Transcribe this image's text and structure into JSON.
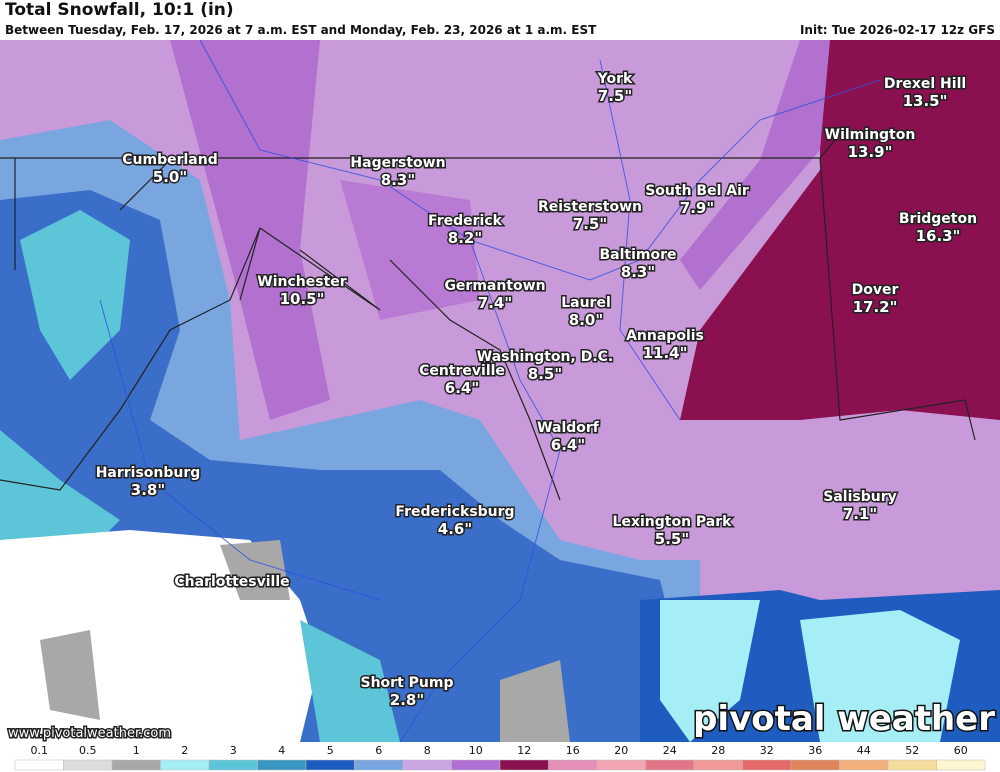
{
  "header": {
    "title": "Total Snowfall, 10:1 (in)",
    "subtitle": "Between Tuesday, Feb. 17, 2026 at 7 a.m. EST and Monday, Feb. 23, 2026 at 1 a.m. EST",
    "init": "Init: Tue 2026-02-17 12z GFS"
  },
  "places": [
    {
      "name": "York",
      "amount": "7.5\""
    },
    {
      "name": "Drexel Hill",
      "amount": "13.5\""
    },
    {
      "name": "Wilmington",
      "amount": "13.9\""
    },
    {
      "name": "Cumberland",
      "amount": "5.0\""
    },
    {
      "name": "Hagerstown",
      "amount": "8.3\""
    },
    {
      "name": "South Bel Air",
      "amount": "7.9\""
    },
    {
      "name": "Reisterstown",
      "amount": "7.5\""
    },
    {
      "name": "Bridgeton",
      "amount": "16.3\""
    },
    {
      "name": "Frederick",
      "amount": "8.2\""
    },
    {
      "name": "Baltimore",
      "amount": "8.3\""
    },
    {
      "name": "Winchester",
      "amount": "10.5\""
    },
    {
      "name": "Germantown",
      "amount": "7.4\""
    },
    {
      "name": "Dover",
      "amount": "17.2\""
    },
    {
      "name": "Laurel",
      "amount": "8.0\""
    },
    {
      "name": "Annapolis",
      "amount": "11.4\""
    },
    {
      "name": "Washington, D.C.",
      "amount": "8.5\""
    },
    {
      "name": "Centreville",
      "amount": "6.4\""
    },
    {
      "name": "Waldorf",
      "amount": "6.4\""
    },
    {
      "name": "Harrisonburg",
      "amount": "3.8\""
    },
    {
      "name": "Salisbury",
      "amount": "7.1\""
    },
    {
      "name": "Fredericksburg",
      "amount": "4.6\""
    },
    {
      "name": "Lexington Park",
      "amount": "5.5\""
    },
    {
      "name": "Charlottesville"
    },
    {
      "name": "Short Pump",
      "amount": "2.8\""
    }
  ],
  "footer": {
    "url": "www.pivotalweather.com",
    "brand": "pivotal weather"
  },
  "colorbar": {
    "labels": [
      "0.1",
      "0.5",
      "1",
      "2",
      "3",
      "4",
      "5",
      "6",
      "8",
      "10",
      "12",
      "16",
      "20",
      "24",
      "28",
      "32",
      "36",
      "44",
      "52",
      "60"
    ],
    "colors": [
      "#ffffff",
      "#dcdcdc",
      "#a8a8a8",
      "#a6eef6",
      "#5cc6d8",
      "#3a96c0",
      "#1f5cc0",
      "#7aa6e0",
      "#c9a6e4",
      "#b070d4",
      "#8a1050",
      "#e58fb8",
      "#f2a6b4",
      "#e07688",
      "#f09a98",
      "#e36a66",
      "#e0845c",
      "#f2b07c",
      "#f4dc9c",
      "#fff6d0"
    ]
  }
}
